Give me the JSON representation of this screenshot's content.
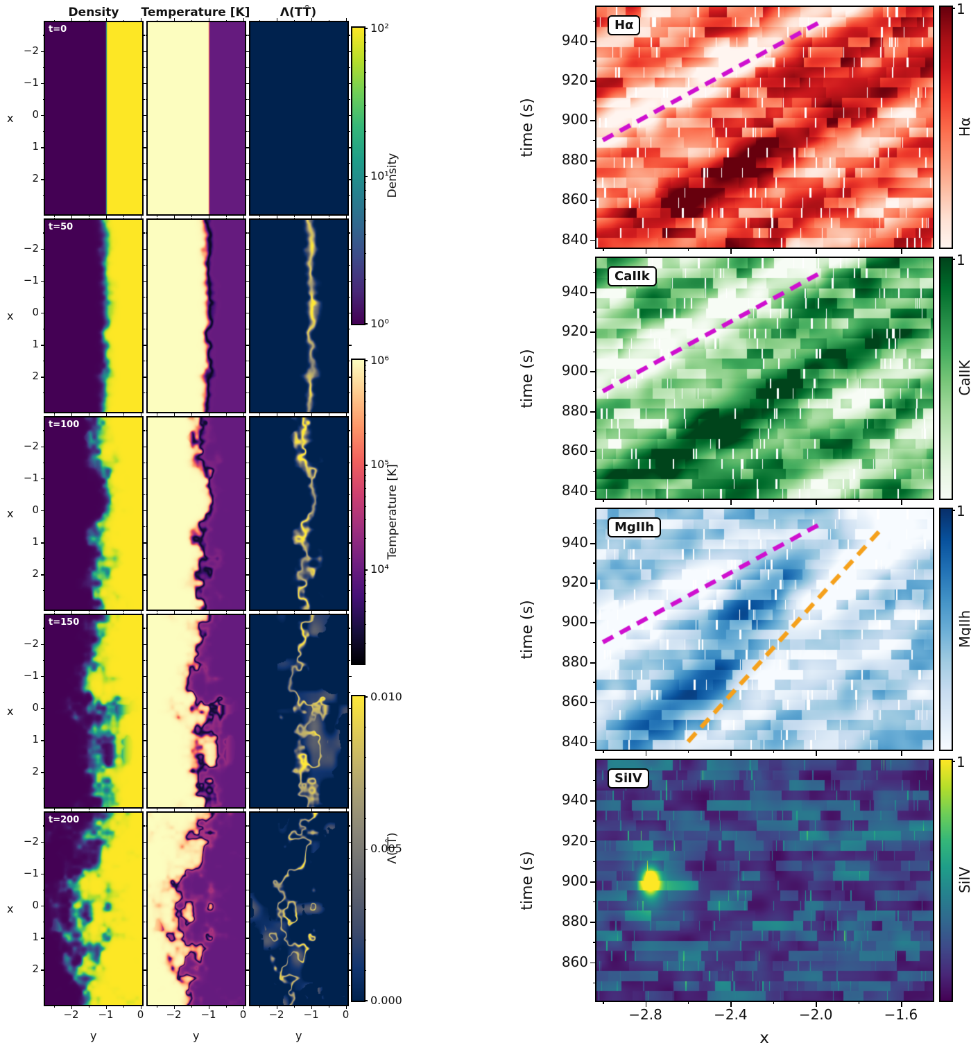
{
  "background": "#ffffff",
  "chart_data": [
    {
      "type": "heatmap",
      "id": "simulation-grid",
      "columns": [
        "Density",
        "Temperature [K]",
        "Λ(TT̂)"
      ],
      "row_time_labels": [
        "t=0",
        "t=50",
        "t=100",
        "t=150",
        "t=200"
      ],
      "xlabel": "y",
      "ylabel": "x",
      "x_range": [
        -2.75,
        0.05
      ],
      "y_range": [
        -2.9,
        3.1
      ],
      "xticks": [
        -2,
        -1,
        0
      ],
      "xtick_labels": [
        "−2",
        "−1",
        "0"
      ],
      "xtick_minor": [
        -2.5,
        -1.5,
        -0.5
      ],
      "yticks": [
        -2,
        -1,
        0,
        1,
        2
      ],
      "ytick_labels": [
        "−2",
        "−1",
        "0",
        "1",
        "2"
      ],
      "ytick_minor": [
        -2.5,
        -1.5,
        -0.5,
        0.5,
        1.5,
        2.5
      ],
      "interface_y": -1.0,
      "mixing_amplitude": [
        0,
        0.06,
        0.13,
        0.22,
        0.3
      ],
      "mixing_center_frac": [
        0.632,
        0.615,
        0.6,
        0.55,
        0.48
      ],
      "interface_steepness": [
        400,
        60,
        40,
        28,
        20
      ],
      "colorbars": [
        {
          "label": "Density",
          "colormap": "viridis",
          "scale": "log10",
          "range": [
            1,
            100
          ],
          "tick_values": [
            100,
            10,
            1
          ],
          "tick_labels": [
            "10²",
            "10¹",
            "10⁰"
          ]
        },
        {
          "label": "Temperature [K]",
          "colormap": "magma",
          "scale": "log10",
          "range": [
            1258,
            1000000
          ],
          "tick_values": [
            1000000,
            100000,
            10000
          ],
          "tick_labels": [
            "10⁶",
            "10⁵",
            "10⁴"
          ]
        },
        {
          "label": "Λ(TT̂)",
          "colormap": "cividis",
          "scale": "linear",
          "range": [
            0,
            0.01
          ],
          "tick_values": [
            0.01,
            0.005,
            0
          ],
          "tick_labels": [
            "0.010",
            "0.005",
            "0.000"
          ]
        }
      ]
    },
    {
      "type": "heatmap",
      "id": "spectral-time-distance",
      "xlabel": "x",
      "ylabel": "time (s)",
      "x_range": [
        -3.03,
        -1.45
      ],
      "xticks": [
        -2.8,
        -2.4,
        -2.0,
        -1.6
      ],
      "xtick_labels": [
        "−2.8",
        "−2.4",
        "−2.0",
        "−1.6"
      ],
      "xtick_minor": [
        -3.0,
        -2.6,
        -2.2,
        -1.8
      ],
      "panels": [
        {
          "name": "Hα",
          "colorbar_label": "Hα",
          "colormap": "Reds",
          "colorbar_top_tick": "1",
          "t_range": [
            836,
            957
          ],
          "yticks": [
            840,
            860,
            880,
            900,
            920,
            940
          ],
          "lines": [
            {
              "color": "#cf10cf",
              "dash": "dashed",
              "from_xt": [
                -3.0,
                890
              ],
              "to_xt": [
                -1.97,
                950
              ]
            }
          ]
        },
        {
          "name": "CaIIk",
          "colorbar_label": "CaIIK",
          "colormap": "Greens",
          "colorbar_top_tick": "1",
          "t_range": [
            836,
            957
          ],
          "yticks": [
            840,
            860,
            880,
            900,
            920,
            940
          ],
          "lines": [
            {
              "color": "#cf10cf",
              "dash": "dashed",
              "from_xt": [
                -3.0,
                890
              ],
              "to_xt": [
                -1.97,
                950
              ]
            }
          ]
        },
        {
          "name": "MgIIh",
          "colorbar_label": "MgIIh",
          "colormap": "Blues",
          "colorbar_top_tick": "1",
          "t_range": [
            836,
            957
          ],
          "yticks": [
            840,
            860,
            880,
            900,
            920,
            940
          ],
          "lines": [
            {
              "color": "#cf10cf",
              "dash": "dashed",
              "from_xt": [
                -3.0,
                890
              ],
              "to_xt": [
                -1.97,
                950
              ]
            },
            {
              "color": "#f5a11c",
              "dash": "dashed",
              "from_xt": [
                -2.6,
                840
              ],
              "to_xt": [
                -1.7,
                946
              ]
            }
          ]
        },
        {
          "name": "SiIV",
          "colorbar_label": "SiIV",
          "colormap": "viridis",
          "colorbar_top_tick": "1",
          "t_range": [
            841,
            960
          ],
          "yticks": [
            860,
            880,
            900,
            920,
            940
          ],
          "lines": []
        }
      ]
    }
  ]
}
